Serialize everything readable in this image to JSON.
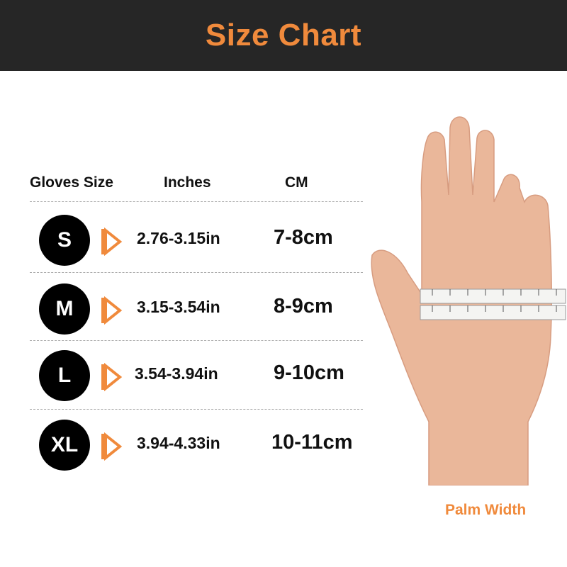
{
  "title": "Size Chart",
  "headers": {
    "size": "Gloves Size",
    "inches": "Inches",
    "cm": "CM"
  },
  "rows": [
    {
      "size": "S",
      "inches": "2.76-3.15in",
      "cm": "7-8cm"
    },
    {
      "size": "M",
      "inches": "3.15-3.54in",
      "cm": "8-9cm"
    },
    {
      "size": "L",
      "inches": "3.54-3.94in",
      "cm": "9-10cm"
    },
    {
      "size": "XL",
      "inches": "3.94-4.33in",
      "cm": "10-11cm"
    }
  ],
  "caption": "Palm Width",
  "colors": {
    "accent": "#f08a3c",
    "header_bg": "#262626",
    "skin": "#eab79a"
  }
}
